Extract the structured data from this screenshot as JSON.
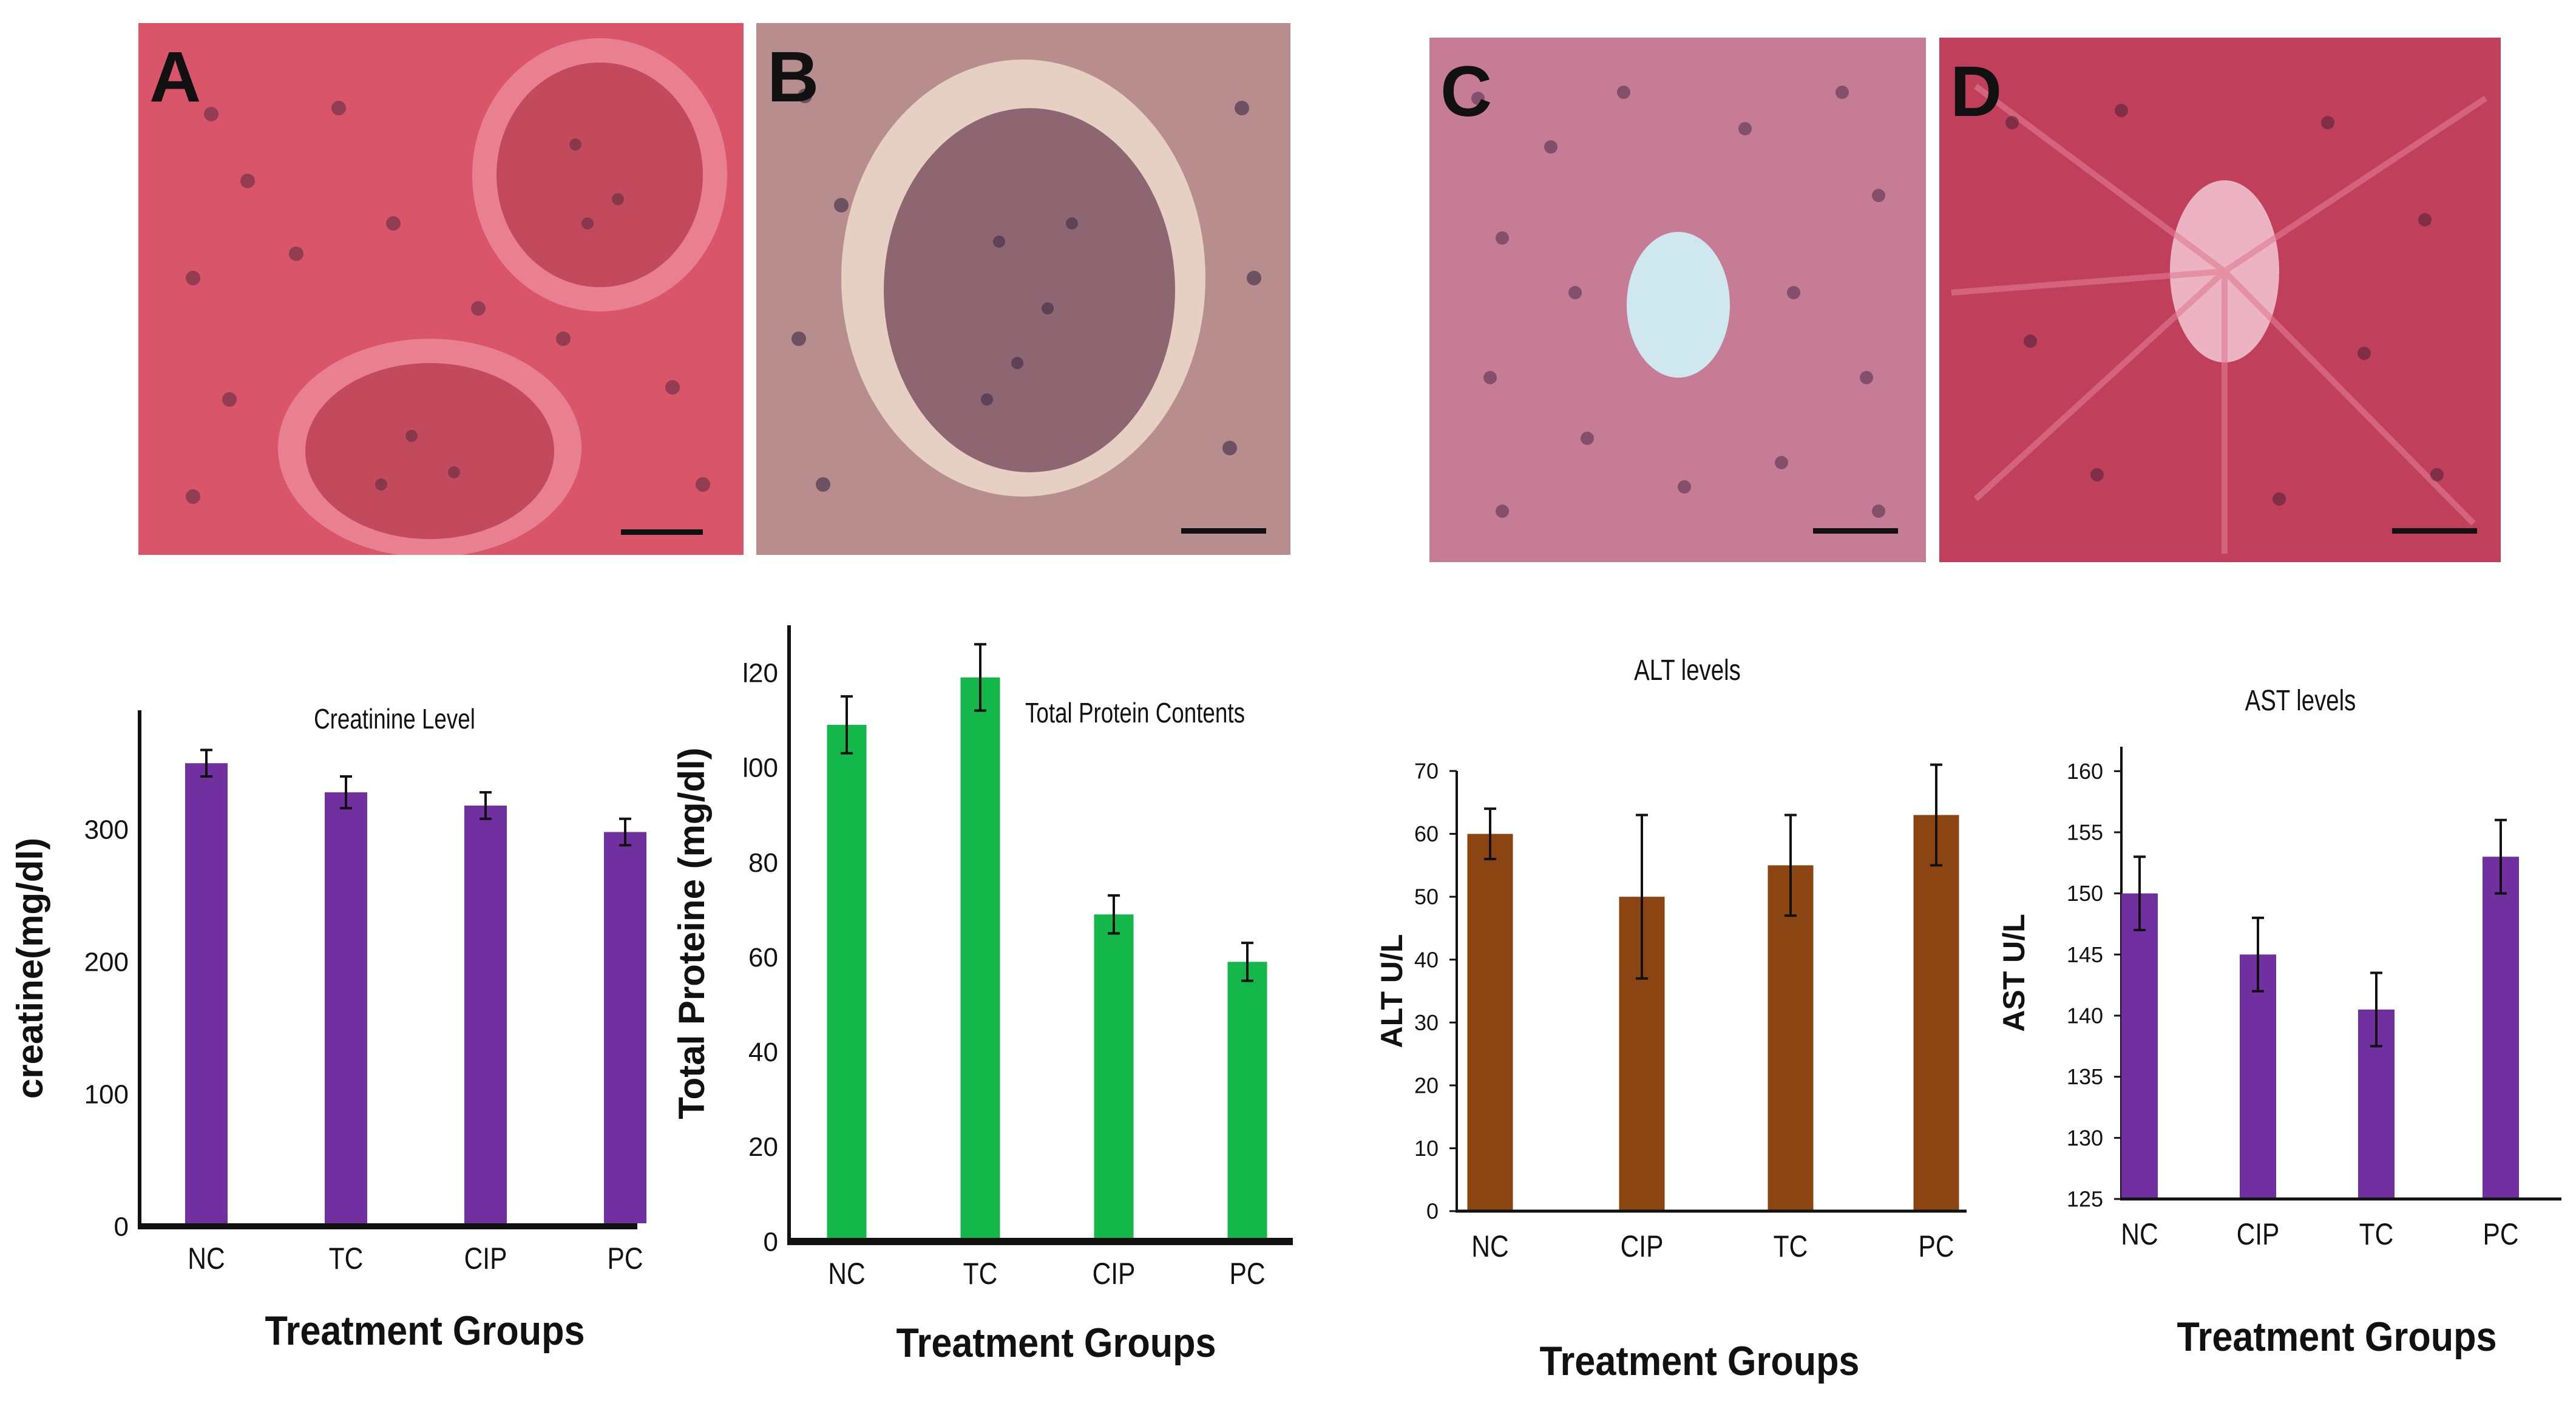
{
  "panels": [
    {
      "label": "A",
      "tissue": "kidney"
    },
    {
      "label": "B",
      "tissue": "kidney"
    },
    {
      "label": "C",
      "tissue": "liver"
    },
    {
      "label": "D",
      "tissue": "liver"
    }
  ],
  "colors": {
    "creatinine": "#7030a0",
    "protein": "#14b84a",
    "alt": "#8b4513",
    "ast": "#7030a0",
    "axis": "#111111",
    "stain_a": "#d9566a",
    "stain_b": "#b78d8d",
    "stain_c": "#c77c96",
    "stain_d": "#c0405c"
  },
  "chart_data": [
    {
      "type": "bar",
      "title": "Creatinine Level",
      "ylabel": "creatine(mg/dl)",
      "xlabel": "Treatment Groups",
      "categories": [
        "NC",
        "TC",
        "CIP",
        "PC"
      ],
      "values": [
        350,
        328,
        318,
        298
      ],
      "errors": [
        10,
        12,
        10,
        10
      ],
      "ylim": [
        0,
        390
      ],
      "yticks": [
        0,
        100,
        200,
        300
      ],
      "ytick_labels": [
        "0",
        "100",
        "200",
        "300"
      ],
      "grid": false,
      "legend": false
    },
    {
      "type": "bar",
      "title": "Total Protein Contents",
      "ylabel": "Total Proteine (mg/dl)",
      "xlabel": "Treatment Groups",
      "categories": [
        "NC",
        "TC",
        "CIP",
        "PC"
      ],
      "values": [
        109,
        119,
        69,
        59
      ],
      "errors": [
        6,
        7,
        4,
        4
      ],
      "ylim": [
        0,
        130
      ],
      "yticks": [
        0,
        20,
        40,
        60,
        80,
        100,
        120
      ],
      "ytick_labels": [
        "0",
        "20",
        "40",
        "60",
        "80",
        "l00",
        "l20"
      ],
      "grid": false,
      "legend": false
    },
    {
      "type": "bar",
      "title": "ALT levels",
      "ylabel": "ALT U/L",
      "xlabel": "Treatment Groups",
      "categories": [
        "NC",
        "CIP",
        "TC",
        "PC"
      ],
      "values": [
        60,
        50,
        55,
        63
      ],
      "errors": [
        4,
        13,
        8,
        8
      ],
      "ylim": [
        0,
        70
      ],
      "yticks": [
        0,
        10,
        20,
        30,
        40,
        50,
        60,
        70
      ],
      "ytick_labels": [
        "0",
        "10",
        "20",
        "30",
        "40",
        "50",
        "60",
        "70"
      ],
      "grid": false,
      "legend": false
    },
    {
      "type": "bar",
      "title": "AST levels",
      "ylabel": "AST U/L",
      "xlabel": "Treatment Groups",
      "categories": [
        "NC",
        "CIP",
        "TC",
        "PC"
      ],
      "values": [
        150,
        145,
        140.5,
        153
      ],
      "errors": [
        3,
        3,
        3,
        3
      ],
      "ylim": [
        125,
        162
      ],
      "yticks": [
        125,
        130,
        135,
        140,
        145,
        150,
        155,
        160
      ],
      "ytick_labels": [
        "125",
        "130",
        "135",
        "140",
        "145",
        "150",
        "155",
        "160"
      ],
      "grid": false,
      "legend": false
    }
  ]
}
